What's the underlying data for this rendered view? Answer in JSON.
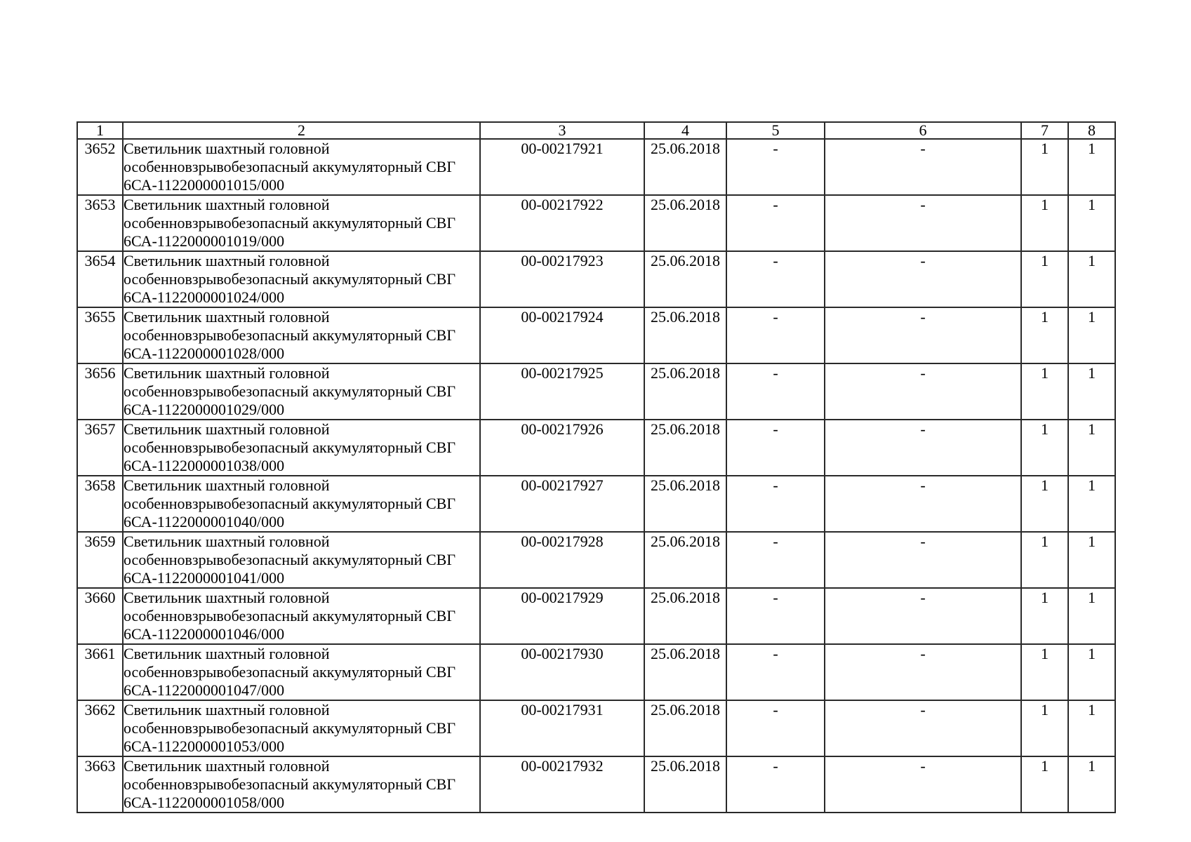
{
  "page": {
    "background_color": "#ffffff",
    "text_color": "#000000",
    "border_color": "#2a2a2a"
  },
  "table": {
    "columns": [
      "1",
      "2",
      "3",
      "4",
      "5",
      "6",
      "7",
      "8"
    ],
    "rows": [
      {
        "num": "3652",
        "desc": "Светильник шахтный головной\nособенновзрывобезопасный аккумуляторный СВГ\n6СА-1122000001015/000",
        "code": "00-00217921",
        "date": "25.06.2018",
        "c5": "-",
        "c6": "-",
        "c7": "1",
        "c8": "1"
      },
      {
        "num": "3653",
        "desc": "Светильник шахтный головной\nособенновзрывобезопасный аккумуляторный СВГ\n6СА-1122000001019/000",
        "code": "00-00217922",
        "date": "25.06.2018",
        "c5": "-",
        "c6": "-",
        "c7": "1",
        "c8": "1"
      },
      {
        "num": "3654",
        "desc": "Светильник шахтный головной\nособенновзрывобезопасный аккумуляторный СВГ\n6СА-1122000001024/000",
        "code": "00-00217923",
        "date": "25.06.2018",
        "c5": "-",
        "c6": "-",
        "c7": "1",
        "c8": "1"
      },
      {
        "num": "3655",
        "desc": "Светильник шахтный головной\nособенновзрывобезопасный аккумуляторный СВГ\n6СА-1122000001028/000",
        "code": "00-00217924",
        "date": "25.06.2018",
        "c5": "-",
        "c6": "-",
        "c7": "1",
        "c8": "1"
      },
      {
        "num": "3656",
        "desc": "Светильник шахтный головной\nособенновзрывобезопасный аккумуляторный СВГ\n6СА-1122000001029/000",
        "code": "00-00217925",
        "date": "25.06.2018",
        "c5": "-",
        "c6": "-",
        "c7": "1",
        "c8": "1"
      },
      {
        "num": "3657",
        "desc": "Светильник шахтный головной\nособенновзрывобезопасный аккумуляторный СВГ\n6СА-1122000001038/000",
        "code": "00-00217926",
        "date": "25.06.2018",
        "c5": "-",
        "c6": "-",
        "c7": "1",
        "c8": "1"
      },
      {
        "num": "3658",
        "desc": "Светильник шахтный головной\nособенновзрывобезопасный аккумуляторный СВГ\n6СА-1122000001040/000",
        "code": "00-00217927",
        "date": "25.06.2018",
        "c5": "-",
        "c6": "-",
        "c7": "1",
        "c8": "1"
      },
      {
        "num": "3659",
        "desc": "Светильник шахтный головной\nособенновзрывобезопасный аккумуляторный СВГ\n6СА-1122000001041/000",
        "code": "00-00217928",
        "date": "25.06.2018",
        "c5": "-",
        "c6": "-",
        "c7": "1",
        "c8": "1"
      },
      {
        "num": "3660",
        "desc": "Светильник шахтный головной\nособенновзрывобезопасный аккумуляторный СВГ\n6СА-1122000001046/000",
        "code": "00-00217929",
        "date": "25.06.2018",
        "c5": "-",
        "c6": "-",
        "c7": "1",
        "c8": "1"
      },
      {
        "num": "3661",
        "desc": "Светильник шахтный головной\nособенновзрывобезопасный аккумуляторный СВГ\n6СА-1122000001047/000",
        "code": "00-00217930",
        "date": "25.06.2018",
        "c5": "-",
        "c6": "-",
        "c7": "1",
        "c8": "1"
      },
      {
        "num": "3662",
        "desc": "Светильник шахтный головной\nособенновзрывобезопасный аккумуляторный СВГ\n6СА-1122000001053/000",
        "code": "00-00217931",
        "date": "25.06.2018",
        "c5": "-",
        "c6": "-",
        "c7": "1",
        "c8": "1"
      },
      {
        "num": "3663",
        "desc": "Светильник шахтный головной\nособенновзрывобезопасный аккумуляторный СВГ\n6СА-1122000001058/000",
        "code": "00-00217932",
        "date": "25.06.2018",
        "c5": "-",
        "c6": "-",
        "c7": "1",
        "c8": "1"
      }
    ]
  }
}
